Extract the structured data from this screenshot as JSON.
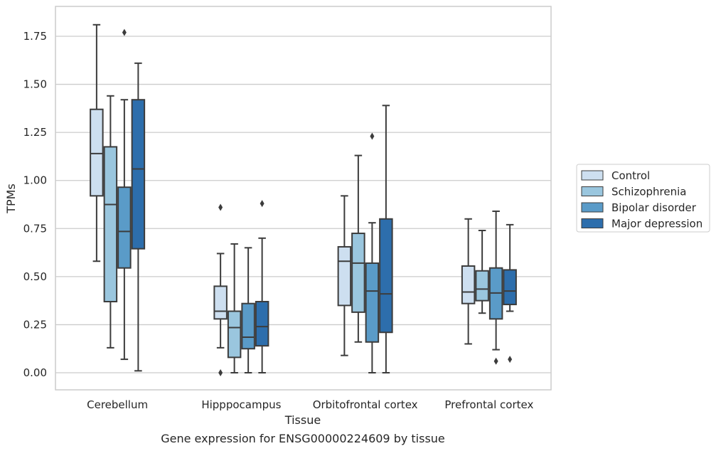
{
  "chart_data": {
    "type": "boxplot",
    "title": "",
    "caption": "Gene expression for ENSG00000224609 by tissue",
    "xlabel": "Tissue",
    "ylabel": "TPMs",
    "ylim": [
      -0.09,
      1.9
    ],
    "yticks": [
      0.0,
      0.25,
      0.5,
      0.75,
      1.0,
      1.25,
      1.5,
      1.75
    ],
    "ytick_labels": [
      "0.00",
      "0.25",
      "0.50",
      "0.75",
      "1.00",
      "1.25",
      "1.50",
      "1.75"
    ],
    "grid": "horizontal",
    "legend_position": "right",
    "categories": [
      "Cerebellum",
      "Hipppocampus",
      "Orbitofrontal cortex",
      "Prefrontal cortex"
    ],
    "series": [
      {
        "name": "Control",
        "color": "#cddff0",
        "boxes": [
          {
            "whislo": 0.58,
            "q1": 0.92,
            "med": 1.14,
            "q3": 1.37,
            "whishi": 1.81,
            "fliers": []
          },
          {
            "whislo": 0.13,
            "q1": 0.28,
            "med": 0.32,
            "q3": 0.45,
            "whishi": 0.62,
            "fliers": [
              0.86,
              0.0
            ]
          },
          {
            "whislo": 0.09,
            "q1": 0.35,
            "med": 0.58,
            "q3": 0.655,
            "whishi": 0.92,
            "fliers": []
          },
          {
            "whislo": 0.15,
            "q1": 0.36,
            "med": 0.42,
            "q3": 0.555,
            "whishi": 0.8,
            "fliers": []
          }
        ]
      },
      {
        "name": "Schizophrenia",
        "color": "#9ac6de",
        "boxes": [
          {
            "whislo": 0.13,
            "q1": 0.37,
            "med": 0.875,
            "q3": 1.175,
            "whishi": 1.44,
            "fliers": []
          },
          {
            "whislo": 0.0,
            "q1": 0.08,
            "med": 0.235,
            "q3": 0.32,
            "whishi": 0.67,
            "fliers": []
          },
          {
            "whislo": 0.16,
            "q1": 0.315,
            "med": 0.57,
            "q3": 0.725,
            "whishi": 1.13,
            "fliers": []
          },
          {
            "whislo": 0.31,
            "q1": 0.375,
            "med": 0.435,
            "q3": 0.53,
            "whishi": 0.74,
            "fliers": []
          }
        ]
      },
      {
        "name": "Bipolar disorder",
        "color": "#5a9bc8",
        "boxes": [
          {
            "whislo": 0.07,
            "q1": 0.545,
            "med": 0.735,
            "q3": 0.965,
            "whishi": 1.42,
            "fliers": [
              1.77
            ]
          },
          {
            "whislo": 0.0,
            "q1": 0.125,
            "med": 0.185,
            "q3": 0.36,
            "whishi": 0.65,
            "fliers": []
          },
          {
            "whislo": 0.0,
            "q1": 0.16,
            "med": 0.425,
            "q3": 0.57,
            "whishi": 0.78,
            "fliers": [
              1.23
            ]
          },
          {
            "whislo": 0.12,
            "q1": 0.28,
            "med": 0.415,
            "q3": 0.545,
            "whishi": 0.84,
            "fliers": [
              0.06
            ]
          }
        ]
      },
      {
        "name": "Major depression",
        "color": "#2d6eac",
        "boxes": [
          {
            "whislo": 0.01,
            "q1": 0.645,
            "med": 1.06,
            "q3": 1.42,
            "whishi": 1.61,
            "fliers": []
          },
          {
            "whislo": 0.0,
            "q1": 0.14,
            "med": 0.24,
            "q3": 0.37,
            "whishi": 0.7,
            "fliers": [
              0.88
            ]
          },
          {
            "whislo": 0.0,
            "q1": 0.21,
            "med": 0.41,
            "q3": 0.8,
            "whishi": 1.39,
            "fliers": []
          },
          {
            "whislo": 0.32,
            "q1": 0.355,
            "med": 0.425,
            "q3": 0.535,
            "whishi": 0.77,
            "fliers": [
              0.07
            ]
          }
        ]
      }
    ]
  }
}
